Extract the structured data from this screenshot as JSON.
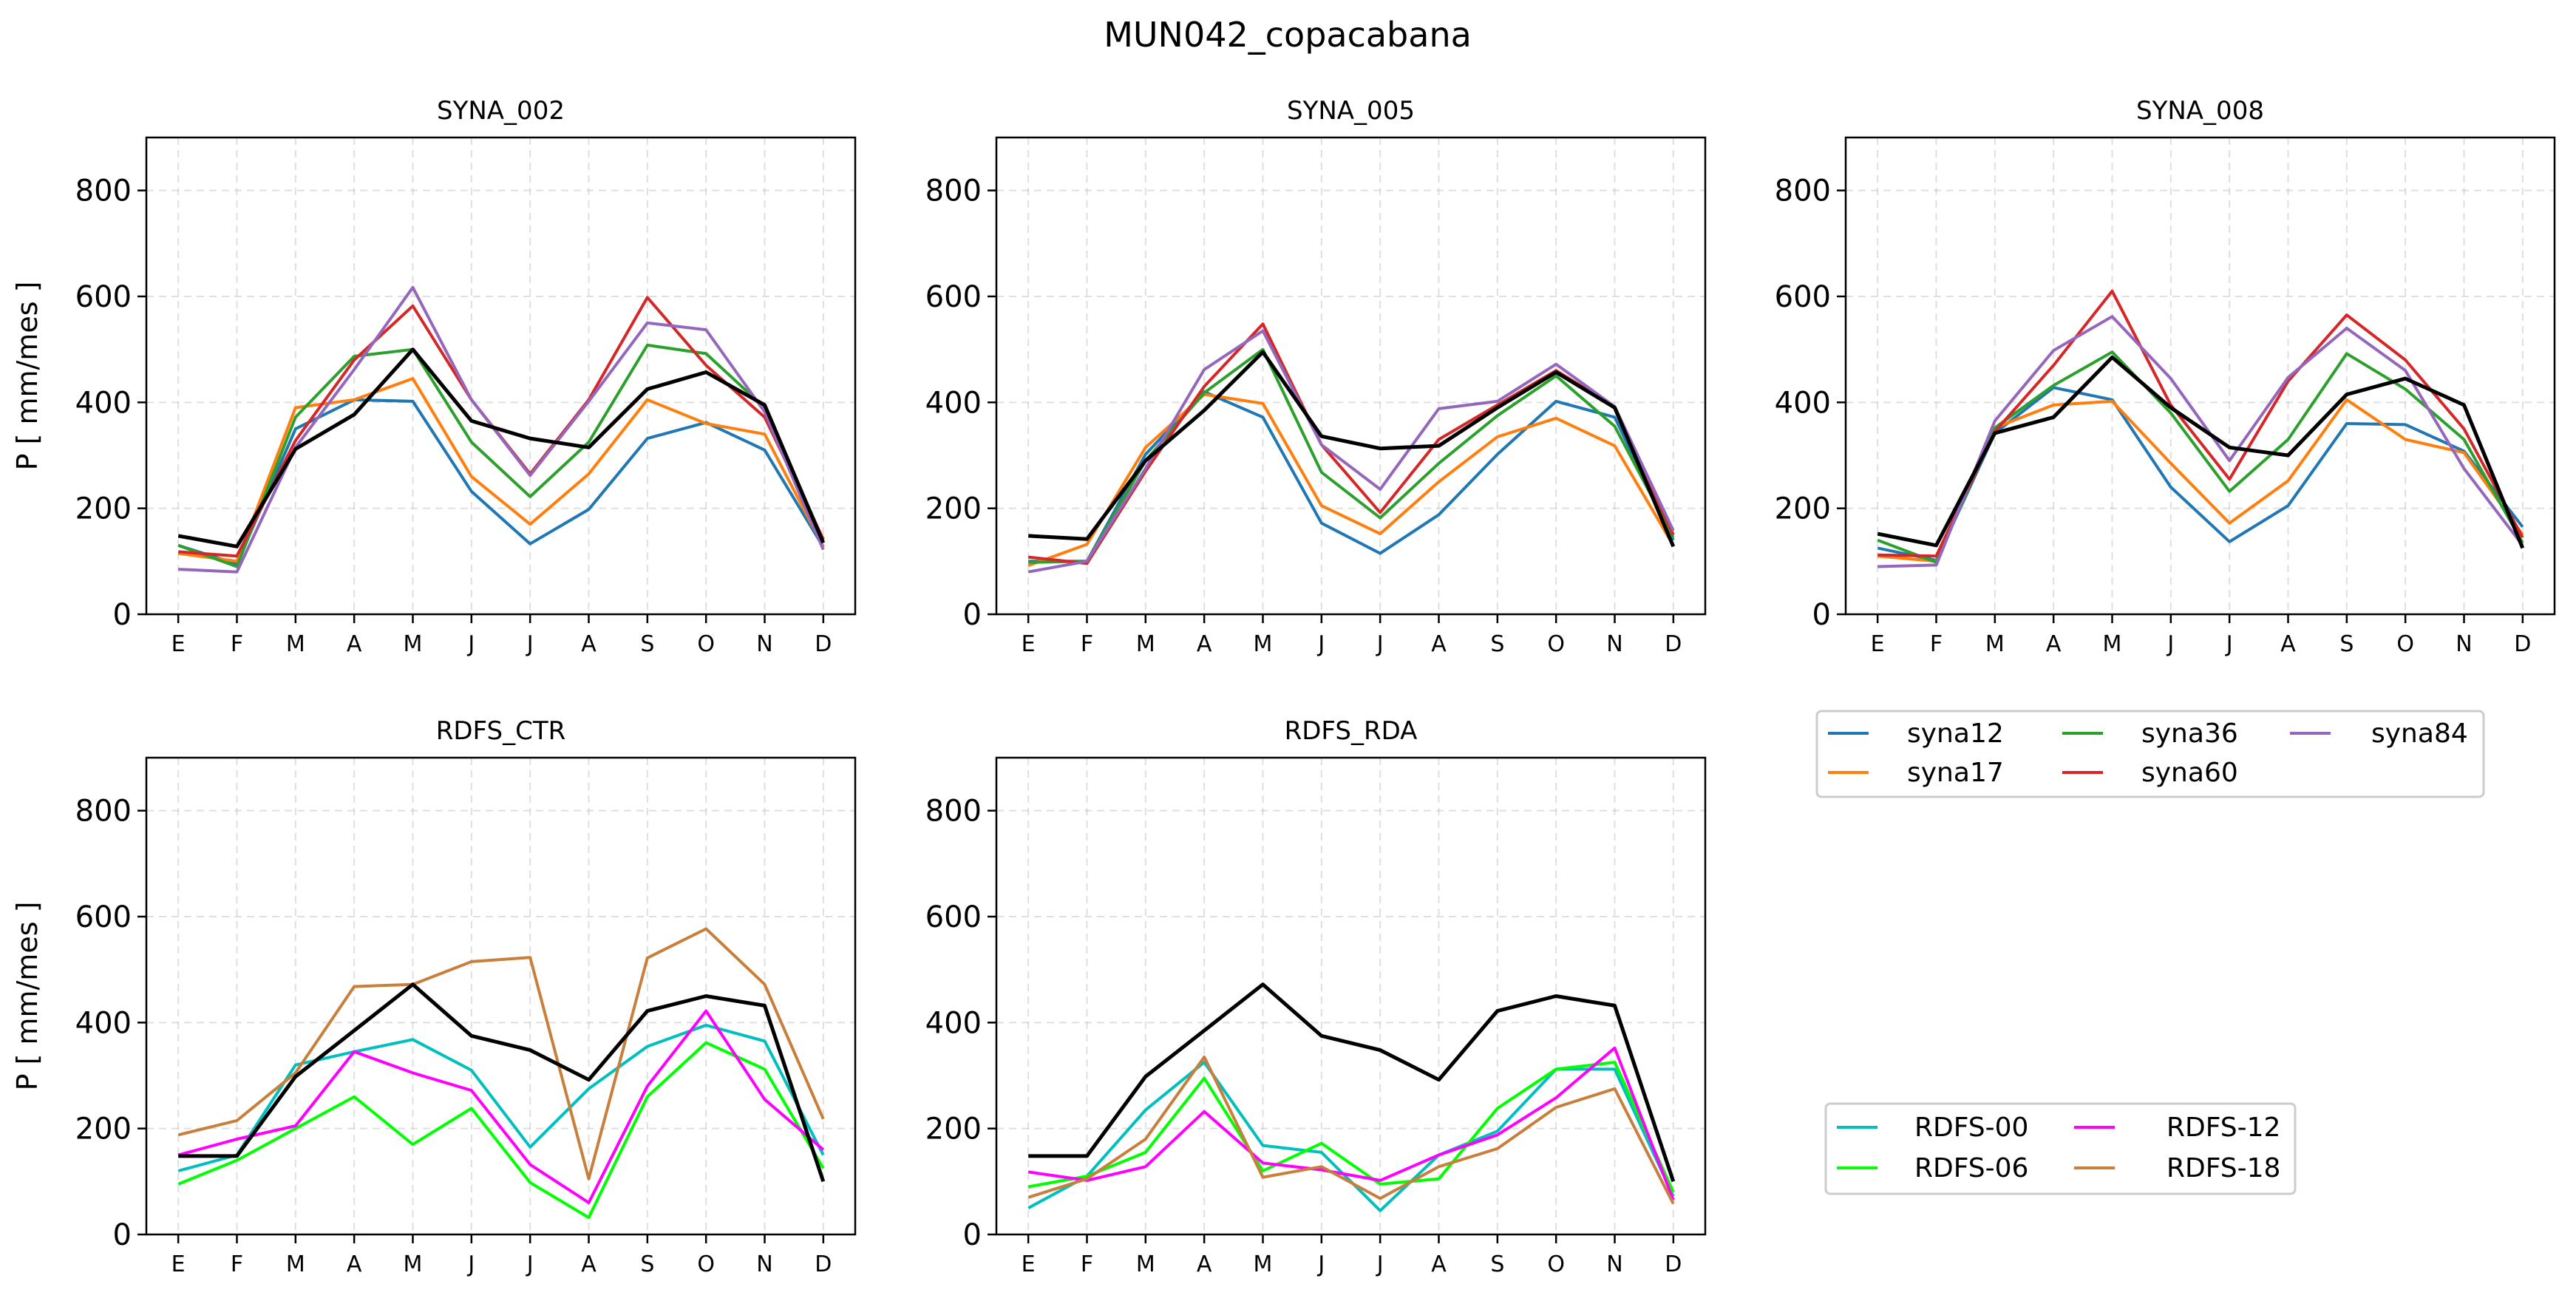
{
  "figure": {
    "title": "MUN042_copacabana",
    "ylabel": "P [ mm/mes ]"
  },
  "legend_syna": {
    "entries": [
      {
        "label": "syna12",
        "color": "#1f77b4"
      },
      {
        "label": "syna17",
        "color": "#ff7f0e"
      },
      {
        "label": "syna36",
        "color": "#2ca02c"
      },
      {
        "label": "syna60",
        "color": "#d62728"
      },
      {
        "label": "syna84",
        "color": "#9467bd"
      }
    ]
  },
  "legend_rdfs": {
    "entries": [
      {
        "label": "RDFS-00",
        "color": "#00bfbf"
      },
      {
        "label": "RDFS-06",
        "color": "#00ff00"
      },
      {
        "label": "RDFS-12",
        "color": "#ff00ff"
      },
      {
        "label": "RDFS-18",
        "color": "#c87f3c"
      }
    ]
  },
  "chart_data": [
    {
      "type": "line",
      "title": "SYNA_002",
      "categories": [
        "E",
        "F",
        "M",
        "A",
        "M",
        "J",
        "J",
        "A",
        "S",
        "O",
        "N",
        "D"
      ],
      "ylim": [
        0,
        900
      ],
      "yticks": [
        0,
        200,
        400,
        600,
        800
      ],
      "grid": true,
      "series": [
        {
          "name": "syna12",
          "color": "#1f77b4",
          "values": [
            130,
            95,
            350,
            405,
            402,
            232,
            133,
            198,
            332,
            362,
            310,
            127
          ]
        },
        {
          "name": "syna17",
          "color": "#ff7f0e",
          "values": [
            115,
            100,
            390,
            405,
            445,
            260,
            170,
            265,
            405,
            360,
            340,
            128
          ]
        },
        {
          "name": "syna36",
          "color": "#2ca02c",
          "values": [
            130,
            90,
            372,
            487,
            500,
            325,
            222,
            325,
            508,
            492,
            390,
            140
          ]
        },
        {
          "name": "syna60",
          "color": "#d62728",
          "values": [
            118,
            110,
            328,
            480,
            582,
            405,
            265,
            405,
            598,
            470,
            372,
            142
          ]
        },
        {
          "name": "syna84",
          "color": "#9467bd",
          "values": [
            85,
            80,
            315,
            462,
            617,
            405,
            262,
            402,
            550,
            537,
            382,
            122
          ]
        },
        {
          "color": "#000000",
          "values": [
            148,
            128,
            312,
            377,
            500,
            365,
            332,
            315,
            425,
            457,
            395,
            135
          ]
        }
      ]
    },
    {
      "type": "line",
      "title": "SYNA_005",
      "categories": [
        "E",
        "F",
        "M",
        "A",
        "M",
        "J",
        "J",
        "A",
        "S",
        "O",
        "N",
        "D"
      ],
      "ylim": [
        0,
        900
      ],
      "yticks": [
        0,
        200,
        400,
        600,
        800
      ],
      "grid": true,
      "series": [
        {
          "name": "syna12",
          "color": "#1f77b4",
          "values": [
            100,
            100,
            302,
            420,
            372,
            172,
            115,
            188,
            302,
            402,
            372,
            140
          ]
        },
        {
          "name": "syna17",
          "color": "#ff7f0e",
          "values": [
            92,
            132,
            315,
            415,
            398,
            205,
            152,
            250,
            335,
            370,
            318,
            130
          ]
        },
        {
          "name": "syna36",
          "color": "#2ca02c",
          "values": [
            98,
            100,
            290,
            418,
            500,
            268,
            182,
            285,
            375,
            450,
            355,
            145
          ]
        },
        {
          "name": "syna60",
          "color": "#d62728",
          "values": [
            108,
            96,
            270,
            430,
            548,
            320,
            192,
            330,
            395,
            460,
            392,
            150
          ]
        },
        {
          "name": "syna84",
          "color": "#9467bd",
          "values": [
            80,
            100,
            275,
            462,
            535,
            320,
            236,
            388,
            402,
            472,
            392,
            158
          ]
        },
        {
          "color": "#000000",
          "values": [
            148,
            142,
            290,
            385,
            495,
            336,
            313,
            318,
            390,
            457,
            390,
            128
          ]
        }
      ]
    },
    {
      "type": "line",
      "title": "SYNA_008",
      "categories": [
        "E",
        "F",
        "M",
        "A",
        "M",
        "J",
        "J",
        "A",
        "S",
        "O",
        "N",
        "D"
      ],
      "ylim": [
        0,
        900
      ],
      "yticks": [
        0,
        200,
        400,
        600,
        800
      ],
      "grid": true,
      "series": [
        {
          "name": "syna12",
          "color": "#1f77b4",
          "values": [
            125,
            102,
            342,
            428,
            405,
            240,
            137,
            205,
            360,
            358,
            308,
            165
          ]
        },
        {
          "name": "syna17",
          "color": "#ff7f0e",
          "values": [
            110,
            100,
            352,
            395,
            402,
            285,
            172,
            252,
            405,
            330,
            305,
            150
          ]
        },
        {
          "name": "syna36",
          "color": "#2ca02c",
          "values": [
            140,
            98,
            352,
            432,
            495,
            380,
            232,
            330,
            492,
            425,
            330,
            135
          ]
        },
        {
          "name": "syna60",
          "color": "#d62728",
          "values": [
            112,
            110,
            345,
            470,
            610,
            395,
            255,
            440,
            565,
            480,
            350,
            145
          ]
        },
        {
          "name": "syna84",
          "color": "#9467bd",
          "values": [
            90,
            93,
            365,
            498,
            562,
            445,
            290,
            447,
            540,
            460,
            275,
            130
          ]
        },
        {
          "color": "#000000",
          "values": [
            152,
            130,
            342,
            372,
            485,
            390,
            315,
            300,
            415,
            445,
            395,
            125
          ]
        }
      ]
    },
    {
      "type": "line",
      "title": "RDFS_CTR",
      "categories": [
        "E",
        "F",
        "M",
        "A",
        "M",
        "J",
        "J",
        "A",
        "S",
        "O",
        "N",
        "D"
      ],
      "ylim": [
        0,
        900
      ],
      "yticks": [
        0,
        200,
        400,
        600,
        800
      ],
      "grid": true,
      "series": [
        {
          "name": "RDFS-00",
          "color": "#00bfbf",
          "values": [
            120,
            150,
            320,
            345,
            368,
            310,
            165,
            275,
            355,
            395,
            365,
            150
          ]
        },
        {
          "name": "RDFS-06",
          "color": "#00ff00",
          "values": [
            95,
            140,
            200,
            260,
            170,
            238,
            98,
            32,
            260,
            362,
            312,
            125
          ]
        },
        {
          "name": "RDFS-12",
          "color": "#ff00ff",
          "values": [
            150,
            180,
            205,
            345,
            305,
            272,
            132,
            60,
            280,
            422,
            255,
            160
          ]
        },
        {
          "name": "RDFS-18",
          "color": "#c87f3c",
          "values": [
            188,
            215,
            305,
            468,
            472,
            515,
            523,
            105,
            522,
            577,
            472,
            218
          ]
        },
        {
          "color": "#000000",
          "values": [
            148,
            148,
            298,
            385,
            472,
            375,
            348,
            292,
            422,
            450,
            432,
            100
          ]
        }
      ]
    },
    {
      "type": "line",
      "title": "RDFS_RDA",
      "categories": [
        "E",
        "F",
        "M",
        "A",
        "M",
        "J",
        "J",
        "A",
        "S",
        "O",
        "N",
        "D"
      ],
      "ylim": [
        0,
        900
      ],
      "yticks": [
        0,
        200,
        400,
        600,
        800
      ],
      "grid": true,
      "series": [
        {
          "name": "RDFS-00",
          "color": "#00bfbf",
          "values": [
            50,
            110,
            235,
            325,
            168,
            155,
            45,
            150,
            195,
            312,
            312,
            72
          ]
        },
        {
          "name": "RDFS-06",
          "color": "#00ff00",
          "values": [
            90,
            110,
            155,
            295,
            120,
            172,
            95,
            105,
            238,
            312,
            325,
            80
          ]
        },
        {
          "name": "RDFS-12",
          "color": "#ff00ff",
          "values": [
            118,
            102,
            128,
            232,
            135,
            122,
            102,
            150,
            188,
            258,
            352,
            65
          ]
        },
        {
          "name": "RDFS-18",
          "color": "#c87f3c",
          "values": [
            70,
            105,
            180,
            335,
            108,
            128,
            68,
            128,
            162,
            240,
            275,
            58
          ]
        },
        {
          "color": "#000000",
          "values": [
            148,
            148,
            298,
            385,
            472,
            375,
            348,
            292,
            422,
            450,
            432,
            100
          ]
        }
      ]
    }
  ]
}
